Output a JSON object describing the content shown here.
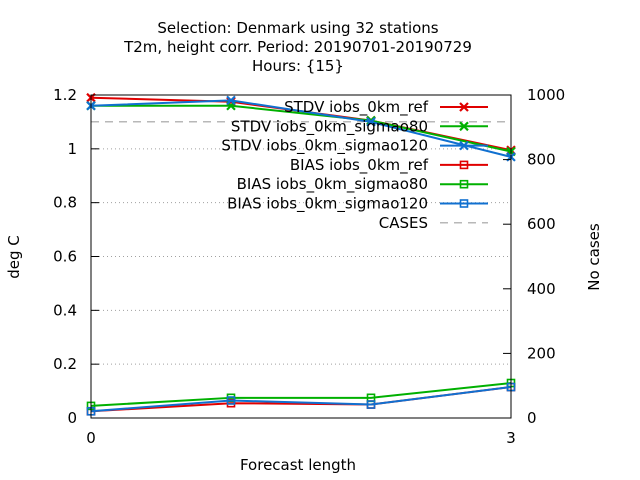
{
  "chart_data": {
    "type": "line",
    "title_lines": [
      "Selection: Denmark using    32 stations",
      "T2m, height corr.   Period: 20190701-20190729",
      "Hours: {15}"
    ],
    "xlabel": "Forecast length",
    "ylabel": "deg C",
    "y2label": "No cases",
    "x": [
      0,
      1,
      2,
      3
    ],
    "x_ticks": [
      0,
      3
    ],
    "xlim": [
      0,
      3
    ],
    "ylim": [
      0,
      1.2
    ],
    "y_ticks": [
      0,
      0.2,
      0.4,
      0.6,
      0.8,
      1,
      1.2
    ],
    "y_tick_labels": [
      "0",
      "0.2",
      "0.4",
      "0.6",
      "0.8",
      "1",
      "1.2"
    ],
    "y2lim": [
      0,
      1000
    ],
    "y2_ticks": [
      0,
      200,
      400,
      600,
      800,
      1000
    ],
    "y2_tick_labels": [
      "0",
      "200",
      "400",
      "600",
      "800",
      "1000"
    ],
    "grid": "horizontal-dotted",
    "legend_position": "top-right",
    "series": [
      {
        "name": "STDV iobs_0km_ref",
        "axis": "y",
        "color": "#e00000",
        "marker": "x",
        "dash": "solid",
        "values": [
          1.19,
          1.175,
          1.105,
          0.995
        ]
      },
      {
        "name": "STDV iobs_0km_sigmao80",
        "axis": "y",
        "color": "#00b000",
        "marker": "x",
        "dash": "solid",
        "values": [
          1.16,
          1.16,
          1.105,
          0.99
        ]
      },
      {
        "name": "STDV iobs_0km_sigmao120",
        "axis": "y",
        "color": "#1070d0",
        "marker": "x",
        "dash": "solid",
        "values": [
          1.16,
          1.18,
          1.1,
          0.97
        ]
      },
      {
        "name": "BIAS iobs_0km_ref",
        "axis": "y",
        "color": "#e00000",
        "marker": "square",
        "dash": "solid",
        "values": [
          0.025,
          0.055,
          0.05,
          0.115
        ]
      },
      {
        "name": "BIAS iobs_0km_sigmao80",
        "axis": "y",
        "color": "#00b000",
        "marker": "square",
        "dash": "solid",
        "values": [
          0.045,
          0.075,
          0.075,
          0.13
        ]
      },
      {
        "name": "BIAS iobs_0km_sigmao120",
        "axis": "y",
        "color": "#1070d0",
        "marker": "square",
        "dash": "solid",
        "values": [
          0.025,
          0.065,
          0.05,
          0.115
        ]
      },
      {
        "name": "CASES",
        "axis": "y2",
        "color": "#a0a0a0",
        "marker": "none",
        "dash": "dashed",
        "values": [
          917,
          917,
          917,
          917
        ]
      }
    ]
  }
}
